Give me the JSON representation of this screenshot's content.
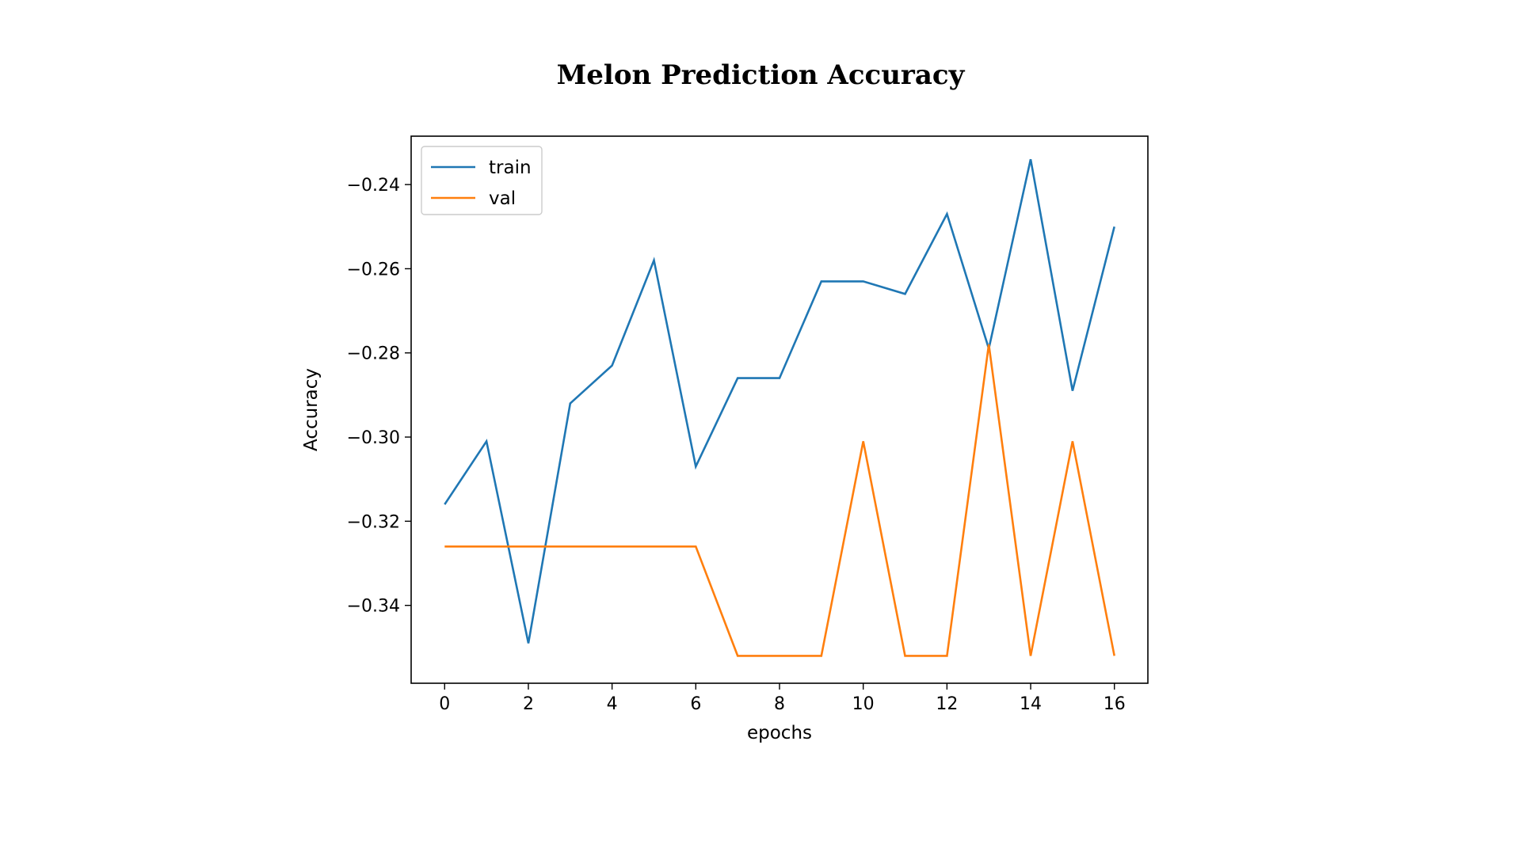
{
  "title": "Melon Prediction Accuracy",
  "chart_data": {
    "type": "line",
    "title": "",
    "xlabel": "epochs",
    "ylabel": "Accuracy",
    "x": [
      0,
      1,
      2,
      3,
      4,
      5,
      6,
      7,
      8,
      9,
      10,
      11,
      12,
      13,
      14,
      15,
      16
    ],
    "xlim": [
      -0.8,
      16.8
    ],
    "ylim": [
      -0.3585,
      -0.2285
    ],
    "xticks": [
      0,
      2,
      4,
      6,
      8,
      10,
      12,
      14,
      16
    ],
    "xtick_labels": [
      "0",
      "2",
      "4",
      "6",
      "8",
      "10",
      "12",
      "14",
      "16"
    ],
    "yticks": [
      -0.24,
      -0.26,
      -0.28,
      -0.3,
      -0.32,
      -0.34
    ],
    "ytick_labels": [
      "−0.24",
      "−0.26",
      "−0.28",
      "−0.30",
      "−0.32",
      "−0.34"
    ],
    "grid": false,
    "legend": "top-left",
    "series": [
      {
        "name": "train",
        "color": "#1f77b4",
        "values": [
          -0.316,
          -0.301,
          -0.349,
          -0.292,
          -0.283,
          -0.258,
          -0.307,
          -0.286,
          -0.286,
          -0.263,
          -0.263,
          -0.266,
          -0.247,
          -0.279,
          -0.234,
          -0.289,
          -0.25
        ]
      },
      {
        "name": "val",
        "color": "#ff7f0e",
        "values": [
          -0.326,
          -0.326,
          -0.326,
          -0.326,
          -0.326,
          -0.326,
          -0.326,
          -0.352,
          -0.352,
          -0.352,
          -0.301,
          -0.352,
          -0.352,
          -0.278,
          -0.352,
          -0.301,
          -0.352
        ]
      }
    ]
  }
}
